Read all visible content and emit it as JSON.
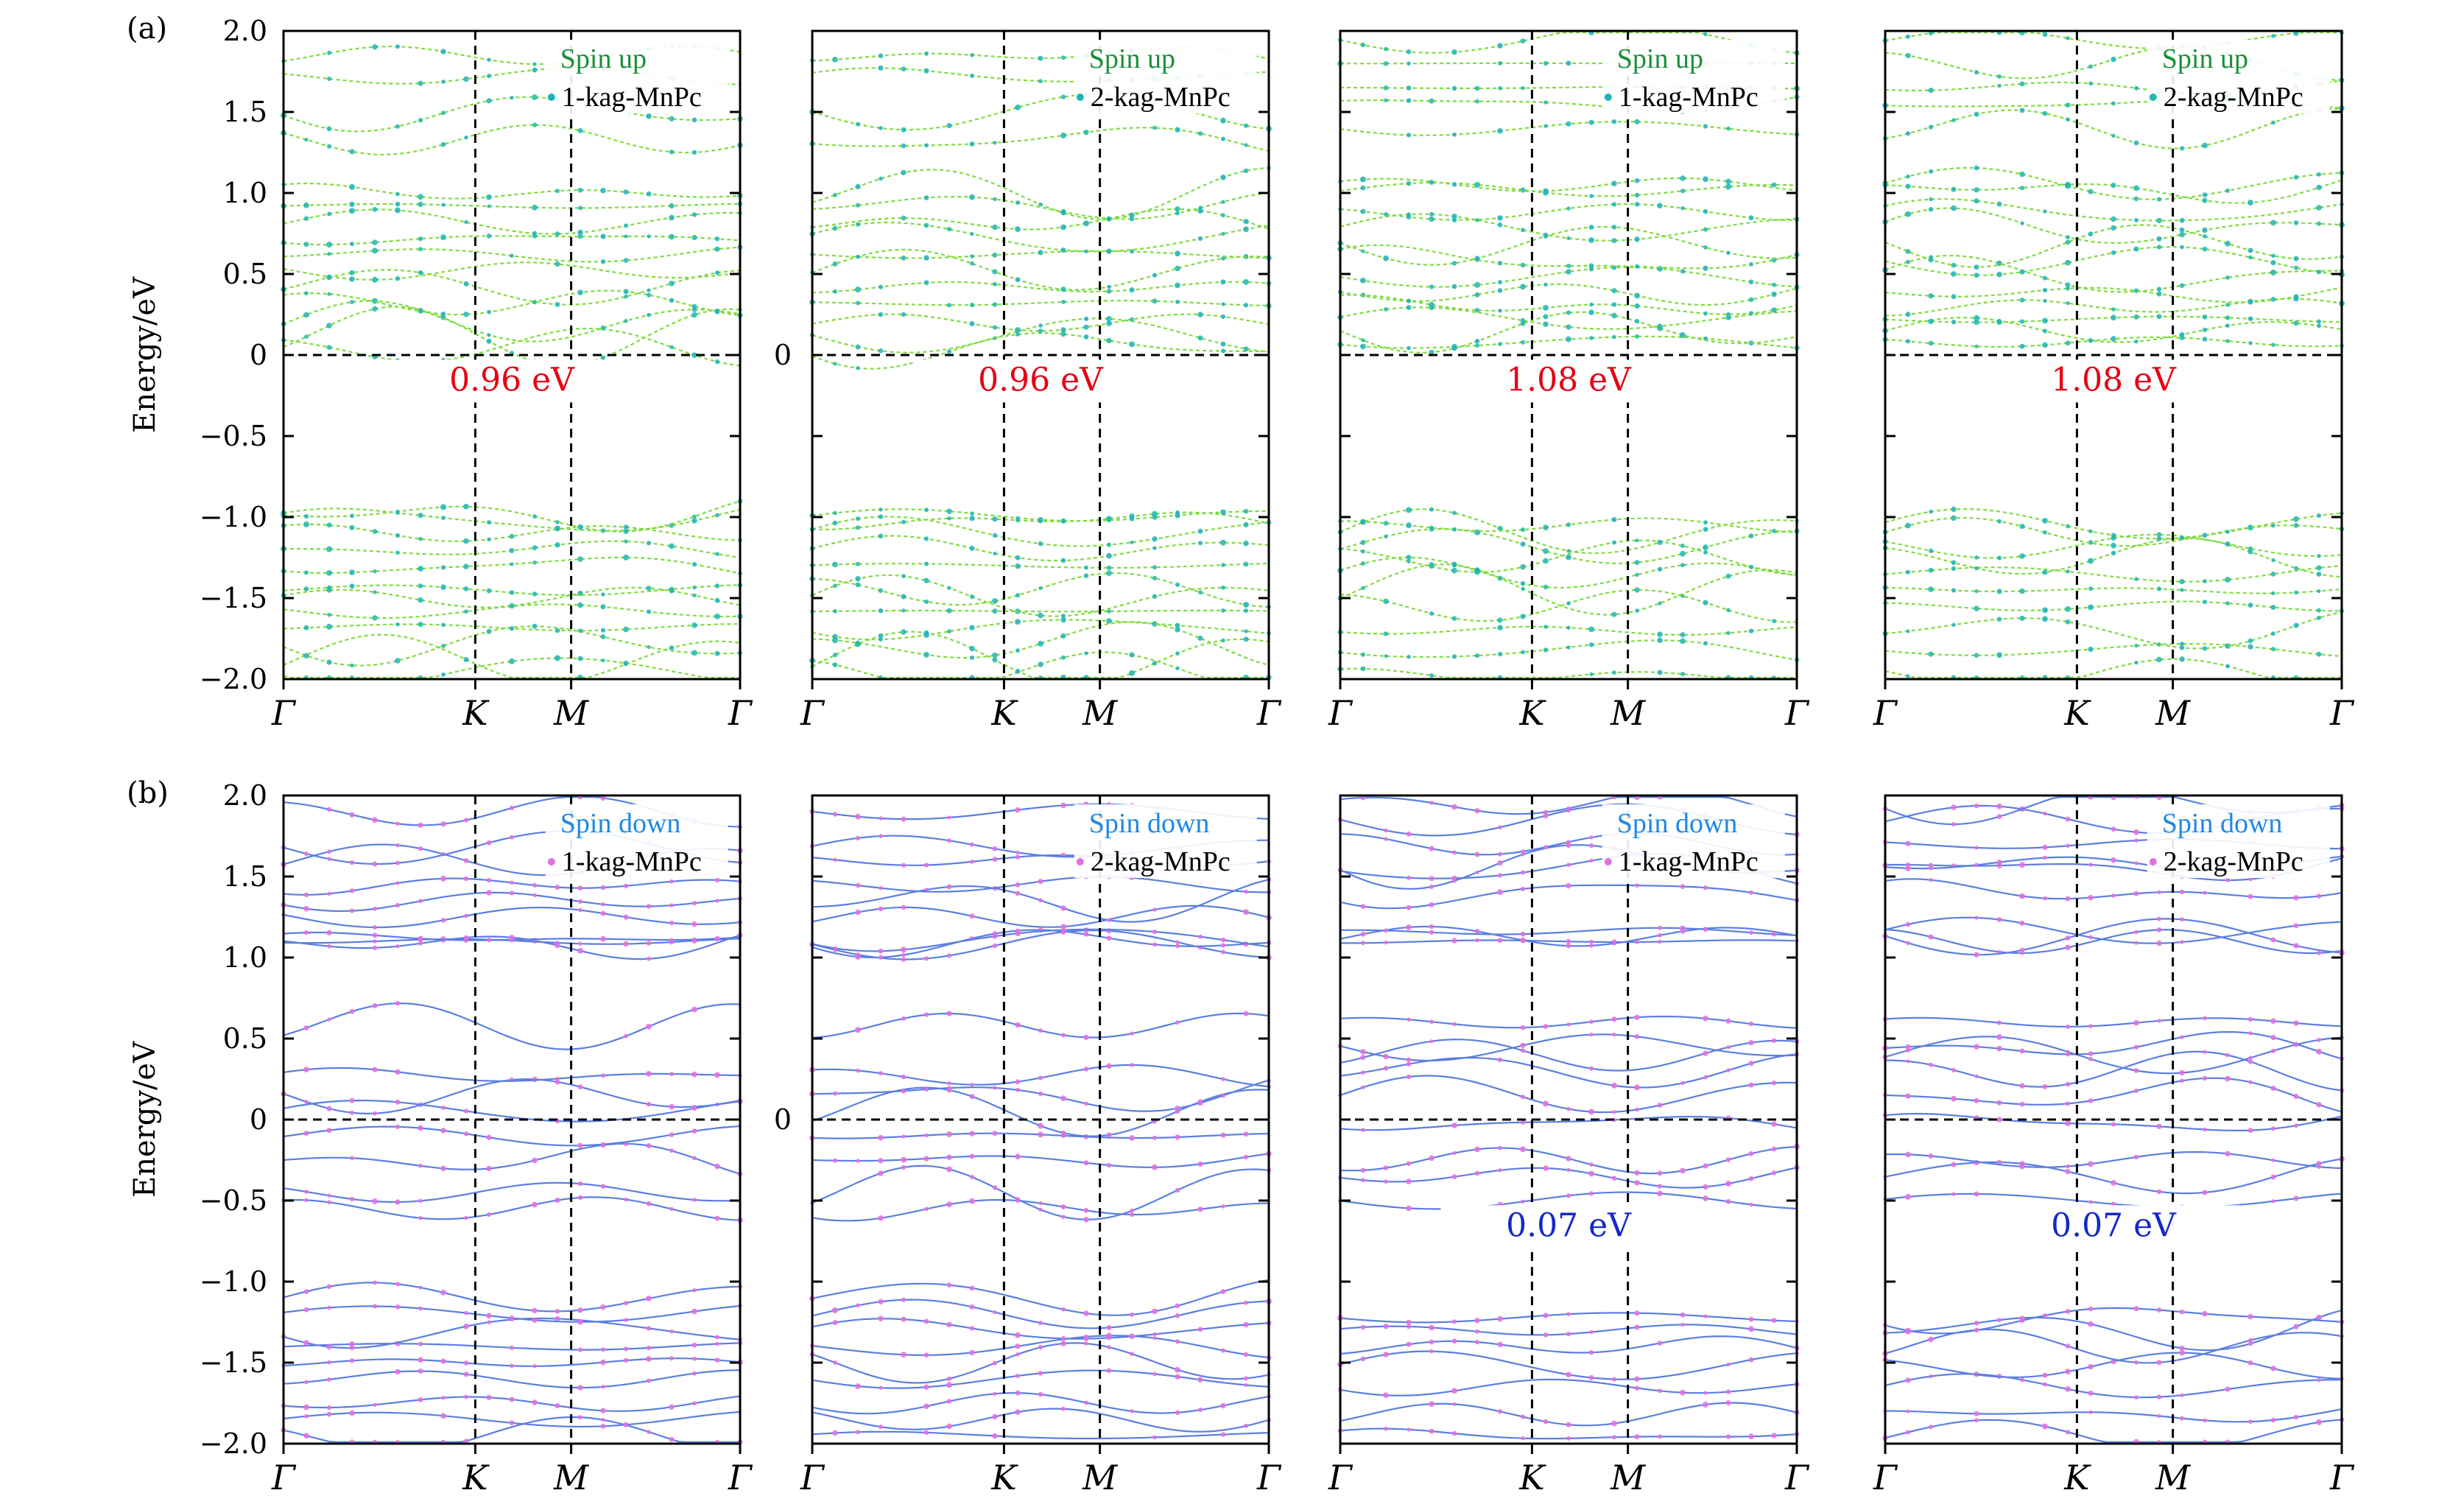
{
  "chart_data": [
    {
      "row": "a",
      "panel_label": "(a)",
      "ylabel": "Energy/eV",
      "spin_text": "Spin up",
      "struct_text": "1-kag-MnPc",
      "gap_text": "0.96 eV",
      "gap_color": "#e60012",
      "ylim": [
        -2,
        2
      ],
      "yticks": [
        "2.0",
        "1.5",
        "1.0",
        "0.5",
        "0",
        "−0.5",
        "−1.0",
        "−1.5",
        "−2.0"
      ],
      "xticks": [
        "Γ",
        "K",
        "M",
        "Γ"
      ],
      "type": "line",
      "bands": [
        -1.95,
        -1.88,
        -1.78,
        -1.68,
        -1.58,
        -1.5,
        -1.45,
        -1.3,
        -1.2,
        -1.1,
        -1.02,
        -0.99,
        0.05,
        0.12,
        0.2,
        0.32,
        0.42,
        0.52,
        0.62,
        0.72,
        0.82,
        0.92,
        1.0,
        1.33,
        1.5,
        1.72,
        1.85
      ]
    },
    {
      "row": "a",
      "panel_label": "",
      "ylabel": "",
      "spin_text": "Spin up",
      "struct_text": "2-kag-MnPc",
      "gap_text": "0.96 eV",
      "gap_color": "#e60012",
      "ylim": [
        -2,
        2
      ],
      "yticks": [
        "0"
      ],
      "xticks": [
        "Γ",
        "K",
        "M",
        "Γ"
      ],
      "type": "line",
      "bands": [
        -1.95,
        -1.88,
        -1.78,
        -1.68,
        -1.58,
        -1.5,
        -1.45,
        -1.3,
        -1.2,
        -1.1,
        -1.02,
        -0.99,
        0.05,
        0.12,
        0.2,
        0.32,
        0.42,
        0.52,
        0.62,
        0.72,
        0.82,
        0.92,
        1.0,
        1.33,
        1.5,
        1.72,
        1.85
      ]
    },
    {
      "row": "a",
      "panel_label": "",
      "ylabel": "",
      "spin_text": "Spin up",
      "struct_text": "1-kag-MnPc",
      "gap_text": "1.08 eV",
      "gap_color": "#e60012",
      "ylim": [
        -2,
        2
      ],
      "yticks": [],
      "xticks": [
        "Γ",
        "K",
        "M",
        "Γ"
      ],
      "type": "line",
      "bands": [
        -1.98,
        -1.82,
        -1.7,
        -1.55,
        -1.45,
        -1.35,
        -1.25,
        -1.18,
        -1.1,
        -1.05,
        0.08,
        0.15,
        0.22,
        0.3,
        0.38,
        0.48,
        0.58,
        0.68,
        0.78,
        0.88,
        1.02,
        1.05,
        1.4,
        1.55,
        1.65,
        1.8,
        1.95
      ]
    },
    {
      "row": "a",
      "panel_label": "",
      "ylabel": "",
      "spin_text": "Spin up",
      "struct_text": "2-kag-MnPc",
      "gap_text": "1.08 eV",
      "gap_color": "#e60012",
      "ylim": [
        -2,
        2
      ],
      "yticks": [],
      "xticks": [
        "Γ",
        "K",
        "M",
        "Γ"
      ],
      "type": "line",
      "bands": [
        -1.98,
        -1.82,
        -1.7,
        -1.55,
        -1.45,
        -1.35,
        -1.25,
        -1.18,
        -1.1,
        -1.05,
        0.08,
        0.15,
        0.22,
        0.3,
        0.38,
        0.48,
        0.58,
        0.68,
        0.78,
        0.88,
        1.02,
        1.05,
        1.4,
        1.55,
        1.65,
        1.8,
        1.95
      ]
    },
    {
      "row": "b",
      "panel_label": "(b)",
      "ylabel": "Energy/eV",
      "spin_text": "Spin down",
      "struct_text": "1-kag-MnPc",
      "gap_text": "",
      "gap_color": "#1428c8",
      "ylim": [
        -2,
        2
      ],
      "yticks": [
        "2.0",
        "1.5",
        "1.0",
        "0.5",
        "0",
        "−0.5",
        "−1.0",
        "−1.5",
        "−2.0"
      ],
      "xticks": [
        "Γ",
        "K",
        "M",
        "Γ"
      ],
      "type": "line",
      "bands": [
        -1.95,
        -1.85,
        -1.75,
        -1.6,
        -1.5,
        -1.4,
        -1.3,
        -1.2,
        -1.1,
        -0.55,
        -0.45,
        -0.25,
        -0.1,
        0.05,
        0.15,
        0.27,
        0.58,
        1.08,
        1.1,
        1.12,
        1.25,
        1.35,
        1.45,
        1.6,
        1.68,
        1.9
      ]
    },
    {
      "row": "b",
      "panel_label": "",
      "ylabel": "",
      "spin_text": "Spin down",
      "struct_text": "2-kag-MnPc",
      "gap_text": "",
      "gap_color": "#1428c8",
      "ylim": [
        -2,
        2
      ],
      "yticks": [
        "0"
      ],
      "xticks": [
        "Γ",
        "K",
        "M",
        "Γ"
      ],
      "type": "line",
      "bands": [
        -1.95,
        -1.85,
        -1.75,
        -1.6,
        -1.5,
        -1.4,
        -1.3,
        -1.2,
        -1.1,
        -0.55,
        -0.45,
        -0.25,
        -0.1,
        0.05,
        0.15,
        0.27,
        0.58,
        1.08,
        1.1,
        1.12,
        1.25,
        1.35,
        1.45,
        1.6,
        1.68,
        1.9
      ]
    },
    {
      "row": "b",
      "panel_label": "",
      "ylabel": "",
      "spin_text": "Spin down",
      "struct_text": "1-kag-MnPc",
      "gap_text": "0.07 eV",
      "gap_color": "#1428c8",
      "ylim": [
        -2,
        2
      ],
      "yticks": [],
      "xticks": [
        "Γ",
        "K",
        "M",
        "Γ"
      ],
      "type": "line",
      "bands": [
        -1.95,
        -1.82,
        -1.65,
        -1.52,
        -1.4,
        -1.3,
        -1.22,
        -0.5,
        -0.35,
        -0.25,
        -0.02,
        0.15,
        0.3,
        0.4,
        0.45,
        0.6,
        1.1,
        1.13,
        1.16,
        1.4,
        1.55,
        1.58,
        1.7,
        1.85,
        1.95
      ]
    },
    {
      "row": "b",
      "panel_label": "",
      "ylabel": "",
      "spin_text": "Spin down",
      "struct_text": "2-kag-MnPc",
      "gap_text": "0.07 eV",
      "gap_color": "#1428c8",
      "ylim": [
        -2,
        2
      ],
      "yticks": [],
      "xticks": [
        "Γ",
        "K",
        "M",
        "Γ"
      ],
      "type": "line",
      "bands": [
        -1.95,
        -1.82,
        -1.65,
        -1.52,
        -1.4,
        -1.3,
        -1.22,
        -0.5,
        -0.35,
        -0.25,
        -0.02,
        0.15,
        0.3,
        0.4,
        0.45,
        0.6,
        1.1,
        1.13,
        1.16,
        1.4,
        1.55,
        1.58,
        1.7,
        1.85,
        1.95
      ]
    }
  ],
  "colors": {
    "up_line": "#7ddc3c",
    "up_dot": "#1fb5b5",
    "up_legend_text": "#1a8f3a",
    "down_line": "#5b7fe0",
    "down_dot": "#e070e0",
    "down_legend_text": "#1e88e5"
  }
}
